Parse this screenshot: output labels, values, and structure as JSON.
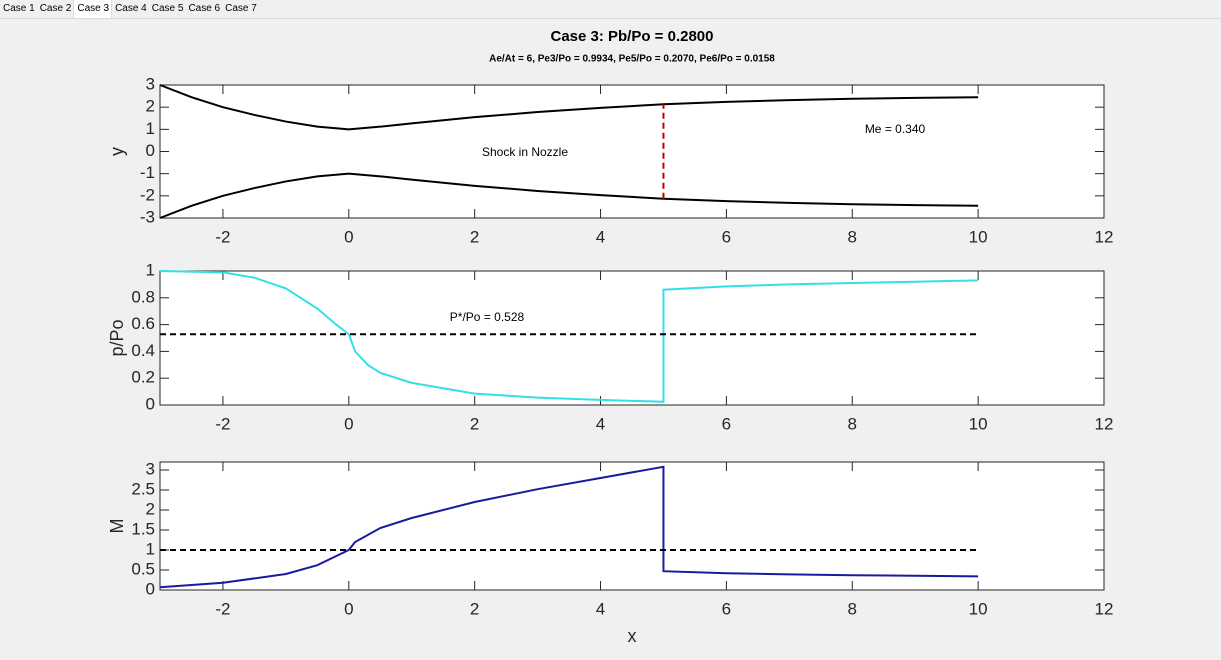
{
  "tabs": [
    "Case 1",
    "Case 2",
    "Case 3",
    "Case 4",
    "Case 5",
    "Case 6",
    "Case 7"
  ],
  "selected_tab": "Case 3",
  "chart_data": [
    {
      "type": "line",
      "title": "Case 3: Pb/Po = 0.2800",
      "subtitle": "Ae/At = 6, Pe3/Po = 0.9934, Pe5/Po = 0.2070, Pe6/Po = 0.0158",
      "y_label": "y",
      "xlim": [
        -3,
        12
      ],
      "xticks": [
        -2,
        0,
        2,
        4,
        6,
        8,
        10,
        12
      ],
      "ylim": [
        -3,
        3
      ],
      "yticks": [
        -3,
        -2,
        -1,
        0,
        1,
        2,
        3
      ],
      "annotations": [
        "Shock in Nozzle",
        "Me = 0.340"
      ],
      "series": [
        {
          "color": "#000000",
          "x": [
            -3,
            -2.5,
            -2,
            -1.5,
            -1,
            -0.5,
            0,
            0.5,
            1,
            2,
            3,
            4,
            5,
            6,
            7,
            8,
            9,
            10
          ],
          "values": [
            3,
            2.45,
            2.0,
            1.65,
            1.35,
            1.12,
            1,
            1.12,
            1.27,
            1.55,
            1.78,
            1.97,
            2.13,
            2.24,
            2.32,
            2.38,
            2.42,
            2.45
          ]
        },
        {
          "color": "#000000",
          "x": [
            -3,
            -2.5,
            -2,
            -1.5,
            -1,
            -0.5,
            0,
            0.5,
            1,
            2,
            3,
            4,
            5,
            6,
            7,
            8,
            9,
            10
          ],
          "values": [
            -3,
            -2.45,
            -2.0,
            -1.65,
            -1.35,
            -1.12,
            -1,
            -1.12,
            -1.27,
            -1.55,
            -1.78,
            -1.97,
            -2.13,
            -2.24,
            -2.32,
            -2.38,
            -2.42,
            -2.45
          ]
        },
        {
          "color": "#c00000",
          "dashed": true,
          "x": [
            5,
            5
          ],
          "values": [
            -2.13,
            2.13
          ]
        }
      ]
    },
    {
      "type": "line",
      "y_label": "p/Po",
      "xlim": [
        -3,
        12
      ],
      "xticks": [
        -2,
        0,
        2,
        4,
        6,
        8,
        10,
        12
      ],
      "ylim": [
        0,
        1
      ],
      "yticks": [
        0,
        0.2,
        0.4,
        0.6,
        0.8,
        1
      ],
      "annotations": [
        "P*/Po = 0.528"
      ],
      "series": [
        {
          "color": "#33e0e6",
          "x": [
            -3,
            -2,
            -1.5,
            -1,
            -0.5,
            -0.2,
            0,
            0.1,
            0.3,
            0.5,
            1,
            2,
            3,
            4,
            5,
            5,
            6,
            7,
            8,
            9,
            10
          ],
          "values": [
            1.0,
            0.99,
            0.95,
            0.87,
            0.72,
            0.6,
            0.528,
            0.4,
            0.3,
            0.24,
            0.165,
            0.085,
            0.055,
            0.038,
            0.024,
            0.86,
            0.885,
            0.9,
            0.91,
            0.92,
            0.93
          ]
        },
        {
          "color": "#000000",
          "dashed": true,
          "x": [
            -3,
            10
          ],
          "values": [
            0.528,
            0.528
          ]
        }
      ]
    },
    {
      "type": "line",
      "y_label": "M",
      "x_label": "x",
      "xlim": [
        -3,
        12
      ],
      "xticks": [
        -2,
        0,
        2,
        4,
        6,
        8,
        10,
        12
      ],
      "ylim": [
        0,
        3.2
      ],
      "yticks": [
        0,
        0.5,
        1,
        1.5,
        2,
        2.5,
        3
      ],
      "series": [
        {
          "color": "#1a1a9c",
          "x": [
            -3,
            -2,
            -1,
            -0.5,
            0,
            0.1,
            0.5,
            1,
            2,
            3,
            4,
            5,
            5,
            6,
            7,
            8,
            9,
            10
          ],
          "values": [
            0.07,
            0.18,
            0.4,
            0.62,
            1.0,
            1.2,
            1.55,
            1.8,
            2.2,
            2.52,
            2.8,
            3.08,
            0.47,
            0.42,
            0.39,
            0.37,
            0.355,
            0.34
          ]
        },
        {
          "color": "#000000",
          "dashed": true,
          "x": [
            -3,
            10
          ],
          "values": [
            1,
            1
          ]
        }
      ]
    }
  ]
}
